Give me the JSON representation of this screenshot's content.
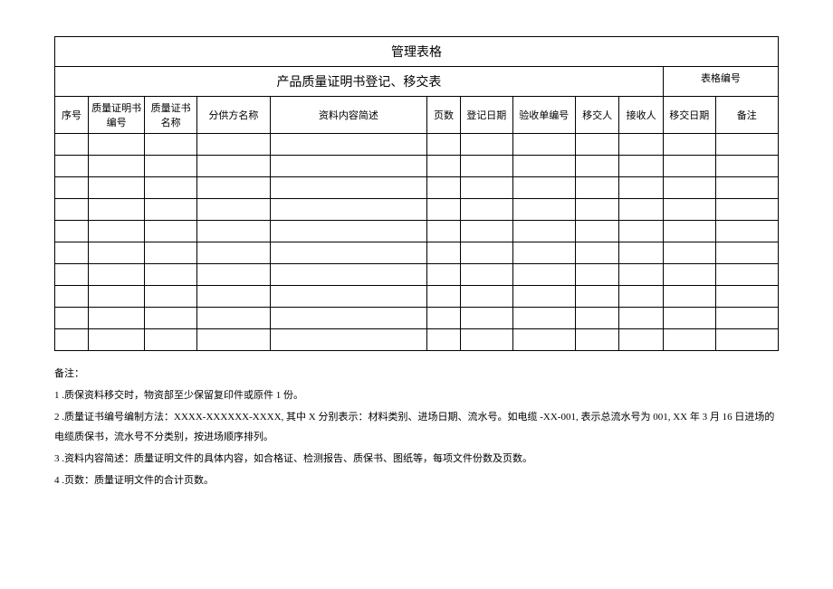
{
  "header": {
    "main_title": "管理表格",
    "sub_title": "产品质量证明书登记、移交表",
    "form_no_label": "表格编号",
    "form_no_value": ""
  },
  "columns": {
    "seq": "序号",
    "cert_no": "质量证明书编号",
    "cert_name": "质量证书名称",
    "supplier": "分供方名称",
    "content": "资料内容简述",
    "pages": "页数",
    "reg_date": "登记日期",
    "accept_no": "验收单编号",
    "handover": "移交人",
    "receiver": "接收人",
    "ho_date": "移交日期",
    "remark": "备注"
  },
  "notes": {
    "title": "备注：",
    "n1": "1 .质保资料移交时，物资部至少保留复印件或原件 1 份。",
    "n2": "2 .质量证书编号编制方法：XXXX-XXXXXX-XXXX, 其中 X 分别表示：材料类别、进场日期、流水号。如电缆 -XX-001, 表示总流水号为 001, XX 年 3 月 16 日进场的电缆质保书，流水号不分类别，按进场顺序排列。",
    "n3": "3 .资料内容简述：质量证明文件的具体内容，如合格证、检测报告、质保书、图纸等，每项文件份数及页数。",
    "n4": "4 .页数：质量证明文件的合计页数。"
  },
  "layout": {
    "empty_rows": 10
  }
}
